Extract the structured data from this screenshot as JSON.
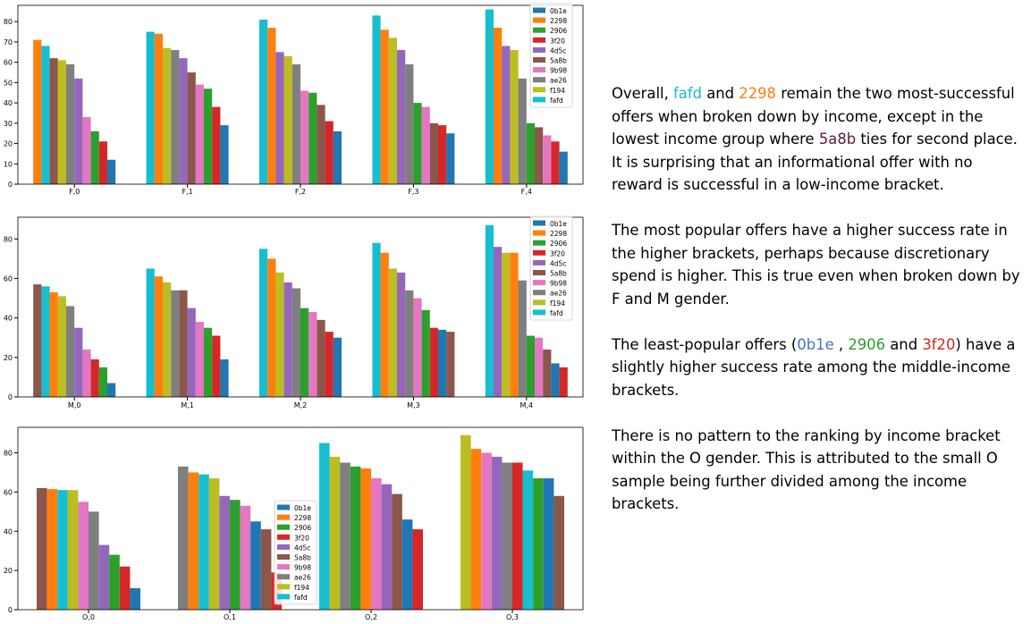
{
  "series_names": [
    "0b1e",
    "2298",
    "2906",
    "3f20",
    "4d5c",
    "5a8b",
    "9b98",
    "ae26",
    "f194",
    "fafd"
  ],
  "series_colors": {
    "0b1e": "#1f77b4",
    "2298": "#ff7f0e",
    "2906": "#2ca02c",
    "3f20": "#d62728",
    "4d5c": "#9467bd",
    "5a8b": "#8c564b",
    "9b98": "#e377c2",
    "ae26": "#7f7f7f",
    "f194": "#bcbd22",
    "fafd": "#17becf"
  },
  "chart_data": [
    {
      "type": "bar",
      "categories": [
        "F,0",
        "F,1",
        "F,2",
        "F,3",
        "F,4"
      ],
      "ylim": [
        0,
        88
      ],
      "yticks": [
        0,
        10,
        20,
        30,
        40,
        50,
        60,
        70,
        80
      ],
      "grid": false,
      "legend": "top-right",
      "groups": [
        {
          "category": "F,0",
          "bars": [
            {
              "series": "2298",
              "value": 71
            },
            {
              "series": "fafd",
              "value": 68
            },
            {
              "series": "5a8b",
              "value": 62
            },
            {
              "series": "f194",
              "value": 61
            },
            {
              "series": "ae26",
              "value": 59
            },
            {
              "series": "4d5c",
              "value": 52
            },
            {
              "series": "9b98",
              "value": 33
            },
            {
              "series": "2906",
              "value": 26
            },
            {
              "series": "3f20",
              "value": 21
            },
            {
              "series": "0b1e",
              "value": 12
            }
          ]
        },
        {
          "category": "F,1",
          "bars": [
            {
              "series": "fafd",
              "value": 75
            },
            {
              "series": "2298",
              "value": 74
            },
            {
              "series": "f194",
              "value": 67
            },
            {
              "series": "ae26",
              "value": 66
            },
            {
              "series": "4d5c",
              "value": 62
            },
            {
              "series": "5a8b",
              "value": 55
            },
            {
              "series": "9b98",
              "value": 49
            },
            {
              "series": "2906",
              "value": 47
            },
            {
              "series": "3f20",
              "value": 38
            },
            {
              "series": "0b1e",
              "value": 29
            }
          ]
        },
        {
          "category": "F,2",
          "bars": [
            {
              "series": "fafd",
              "value": 81
            },
            {
              "series": "2298",
              "value": 77
            },
            {
              "series": "4d5c",
              "value": 65
            },
            {
              "series": "f194",
              "value": 63
            },
            {
              "series": "ae26",
              "value": 59
            },
            {
              "series": "9b98",
              "value": 46
            },
            {
              "series": "2906",
              "value": 45
            },
            {
              "series": "5a8b",
              "value": 39
            },
            {
              "series": "3f20",
              "value": 31
            },
            {
              "series": "0b1e",
              "value": 26
            }
          ]
        },
        {
          "category": "F,3",
          "bars": [
            {
              "series": "fafd",
              "value": 83
            },
            {
              "series": "2298",
              "value": 76
            },
            {
              "series": "f194",
              "value": 72
            },
            {
              "series": "4d5c",
              "value": 66
            },
            {
              "series": "ae26",
              "value": 59
            },
            {
              "series": "2906",
              "value": 40
            },
            {
              "series": "9b98",
              "value": 38
            },
            {
              "series": "5a8b",
              "value": 30
            },
            {
              "series": "3f20",
              "value": 29
            },
            {
              "series": "0b1e",
              "value": 25
            }
          ]
        },
        {
          "category": "F,4",
          "bars": [
            {
              "series": "fafd",
              "value": 86
            },
            {
              "series": "2298",
              "value": 77
            },
            {
              "series": "4d5c",
              "value": 68
            },
            {
              "series": "f194",
              "value": 66
            },
            {
              "series": "ae26",
              "value": 52
            },
            {
              "series": "2906",
              "value": 30
            },
            {
              "series": "5a8b",
              "value": 28
            },
            {
              "series": "9b98",
              "value": 24
            },
            {
              "series": "3f20",
              "value": 21
            },
            {
              "series": "0b1e",
              "value": 16
            }
          ]
        }
      ]
    },
    {
      "type": "bar",
      "categories": [
        "M,0",
        "M,1",
        "M,2",
        "M,3",
        "M,4"
      ],
      "ylim": [
        0,
        91
      ],
      "yticks": [
        0,
        20,
        40,
        60,
        80
      ],
      "grid": false,
      "legend": "top-right",
      "groups": [
        {
          "category": "M,0",
          "bars": [
            {
              "series": "5a8b",
              "value": 57
            },
            {
              "series": "fafd",
              "value": 56
            },
            {
              "series": "2298",
              "value": 53
            },
            {
              "series": "f194",
              "value": 51
            },
            {
              "series": "ae26",
              "value": 46
            },
            {
              "series": "4d5c",
              "value": 35
            },
            {
              "series": "9b98",
              "value": 24
            },
            {
              "series": "3f20",
              "value": 19
            },
            {
              "series": "2906",
              "value": 15
            },
            {
              "series": "0b1e",
              "value": 7
            }
          ]
        },
        {
          "category": "M,1",
          "bars": [
            {
              "series": "fafd",
              "value": 65
            },
            {
              "series": "2298",
              "value": 61
            },
            {
              "series": "f194",
              "value": 58
            },
            {
              "series": "ae26",
              "value": 54
            },
            {
              "series": "5a8b",
              "value": 54
            },
            {
              "series": "4d5c",
              "value": 45
            },
            {
              "series": "9b98",
              "value": 38
            },
            {
              "series": "2906",
              "value": 35
            },
            {
              "series": "3f20",
              "value": 31
            },
            {
              "series": "0b1e",
              "value": 19
            }
          ]
        },
        {
          "category": "M,2",
          "bars": [
            {
              "series": "fafd",
              "value": 75
            },
            {
              "series": "2298",
              "value": 70
            },
            {
              "series": "f194",
              "value": 63
            },
            {
              "series": "4d5c",
              "value": 58
            },
            {
              "series": "ae26",
              "value": 55
            },
            {
              "series": "2906",
              "value": 45
            },
            {
              "series": "9b98",
              "value": 43
            },
            {
              "series": "5a8b",
              "value": 39
            },
            {
              "series": "3f20",
              "value": 33
            },
            {
              "series": "0b1e",
              "value": 30
            }
          ]
        },
        {
          "category": "M,3",
          "bars": [
            {
              "series": "fafd",
              "value": 78
            },
            {
              "series": "2298",
              "value": 73
            },
            {
              "series": "f194",
              "value": 65
            },
            {
              "series": "4d5c",
              "value": 63
            },
            {
              "series": "ae26",
              "value": 54
            },
            {
              "series": "9b98",
              "value": 50
            },
            {
              "series": "2906",
              "value": 44
            },
            {
              "series": "3f20",
              "value": 35
            },
            {
              "series": "0b1e",
              "value": 34
            },
            {
              "series": "5a8b",
              "value": 33
            }
          ]
        },
        {
          "category": "M,4",
          "bars": [
            {
              "series": "fafd",
              "value": 87
            },
            {
              "series": "4d5c",
              "value": 76
            },
            {
              "series": "f194",
              "value": 73
            },
            {
              "series": "2298",
              "value": 73
            },
            {
              "series": "ae26",
              "value": 59
            },
            {
              "series": "2906",
              "value": 31
            },
            {
              "series": "9b98",
              "value": 30
            },
            {
              "series": "5a8b",
              "value": 24
            },
            {
              "series": "0b1e",
              "value": 17
            },
            {
              "series": "3f20",
              "value": 15
            }
          ]
        }
      ]
    },
    {
      "type": "bar",
      "categories": [
        "O,0",
        "O,1",
        "O,2",
        "O,3"
      ],
      "ylim": [
        0,
        93
      ],
      "yticks": [
        0,
        20,
        40,
        60,
        80
      ],
      "grid": false,
      "legend": "center",
      "groups": [
        {
          "category": "O,0",
          "bars": [
            {
              "series": "5a8b",
              "value": 62
            },
            {
              "series": "2298",
              "value": 61.5
            },
            {
              "series": "fafd",
              "value": 61
            },
            {
              "series": "f194",
              "value": 61
            },
            {
              "series": "9b98",
              "value": 55
            },
            {
              "series": "ae26",
              "value": 50
            },
            {
              "series": "4d5c",
              "value": 33
            },
            {
              "series": "2906",
              "value": 28
            },
            {
              "series": "3f20",
              "value": 22
            },
            {
              "series": "0b1e",
              "value": 11
            }
          ]
        },
        {
          "category": "O,1",
          "bars": [
            {
              "series": "ae26",
              "value": 73
            },
            {
              "series": "2298",
              "value": 70
            },
            {
              "series": "fafd",
              "value": 69
            },
            {
              "series": "f194",
              "value": 67
            },
            {
              "series": "4d5c",
              "value": 58
            },
            {
              "series": "2906",
              "value": 56
            },
            {
              "series": "9b98",
              "value": 53
            },
            {
              "series": "0b1e",
              "value": 45
            },
            {
              "series": "5a8b",
              "value": 41
            },
            {
              "series": "3f20",
              "value": 19
            }
          ]
        },
        {
          "category": "O,2",
          "bars": [
            {
              "series": "fafd",
              "value": 85
            },
            {
              "series": "f194",
              "value": 78
            },
            {
              "series": "ae26",
              "value": 75
            },
            {
              "series": "2906",
              "value": 73
            },
            {
              "series": "2298",
              "value": 72
            },
            {
              "series": "9b98",
              "value": 67
            },
            {
              "series": "4d5c",
              "value": 64
            },
            {
              "series": "5a8b",
              "value": 59
            },
            {
              "series": "0b1e",
              "value": 46
            },
            {
              "series": "3f20",
              "value": 41
            }
          ]
        },
        {
          "category": "O,3",
          "bars": [
            {
              "series": "f194",
              "value": 89
            },
            {
              "series": "2298",
              "value": 82
            },
            {
              "series": "9b98",
              "value": 80
            },
            {
              "series": "4d5c",
              "value": 78
            },
            {
              "series": "ae26",
              "value": 75
            },
            {
              "series": "3f20",
              "value": 75
            },
            {
              "series": "fafd",
              "value": 71
            },
            {
              "series": "2906",
              "value": 67
            },
            {
              "series": "0b1e",
              "value": 67
            },
            {
              "series": "5a8b",
              "value": 58
            }
          ]
        }
      ]
    }
  ],
  "commentary": [
    {
      "segments": [
        {
          "text": "Overall, "
        },
        {
          "text": "fafd",
          "color": "#17becf"
        },
        {
          "text": " and "
        },
        {
          "text": "2298",
          "color": "#ff7f0e"
        },
        {
          "text": " remain the two most-successful offers when broken down by income, except in the lowest income group where "
        },
        {
          "text": "5a8b",
          "color": "#5a1a3a"
        },
        {
          "text": " ties for second place. It is surprising that an informational offer with no reward is successful in a low-income bracket."
        }
      ]
    },
    {
      "segments": [
        {
          "text": "The most popular offers have a higher success rate in the higher brackets, perhaps because discretionary spend is higher. This is true even when broken down by F and M gender."
        }
      ]
    },
    {
      "segments": [
        {
          "text": "The least-popular offers ("
        },
        {
          "text": "0b1e",
          "color": "#4472c4"
        },
        {
          "text": " , "
        },
        {
          "text": "2906",
          "color": "#2ca02c"
        },
        {
          "text": "  and "
        },
        {
          "text": "3f20",
          "color": "#d62728"
        },
        {
          "text": ") have a slightly higher success rate among the middle-income brackets."
        }
      ]
    },
    {
      "segments": [
        {
          "text": "There is no pattern to the ranking by income bracket within the O gender. This is attributed to the small O sample being further divided among the income brackets."
        }
      ]
    }
  ]
}
